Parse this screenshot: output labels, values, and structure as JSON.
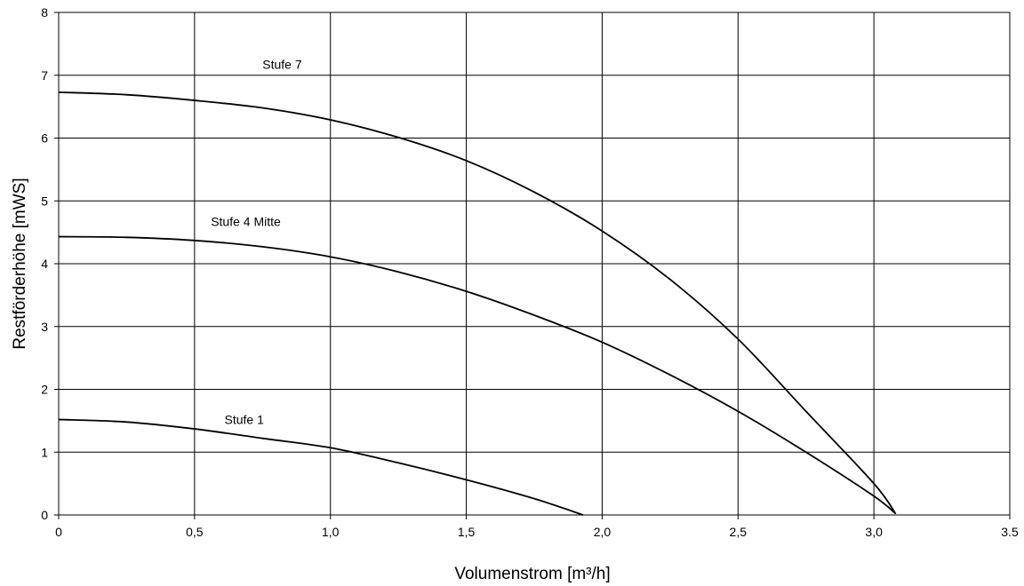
{
  "chart_data": {
    "type": "line",
    "title": "",
    "xlabel": "Volumenstrom [m³/h]",
    "ylabel": "Restförderhöhe [mWS]",
    "xlim": [
      0,
      3.5
    ],
    "ylim": [
      0,
      8
    ],
    "grid": true,
    "x_ticks": [
      {
        "value": 0,
        "label": "0"
      },
      {
        "value": 0.5,
        "label": "0,5"
      },
      {
        "value": 1.0,
        "label": "1,0"
      },
      {
        "value": 1.5,
        "label": "1,5"
      },
      {
        "value": 2.0,
        "label": "2,0"
      },
      {
        "value": 2.5,
        "label": "2,5"
      },
      {
        "value": 3.0,
        "label": "3,0"
      },
      {
        "value": 3.5,
        "label": "3.5"
      }
    ],
    "y_ticks": [
      {
        "value": 0,
        "label": "0"
      },
      {
        "value": 1,
        "label": "1"
      },
      {
        "value": 2,
        "label": "2"
      },
      {
        "value": 3,
        "label": "3"
      },
      {
        "value": 4,
        "label": "4"
      },
      {
        "value": 5,
        "label": "5"
      },
      {
        "value": 6,
        "label": "6"
      },
      {
        "value": 7,
        "label": "7"
      },
      {
        "value": 8,
        "label": "8"
      }
    ],
    "series": [
      {
        "name": "Stufe 7",
        "label_at": [
          0.75,
          7.1
        ],
        "x": [
          0,
          0.25,
          0.5,
          0.75,
          1.0,
          1.25,
          1.5,
          1.75,
          2.0,
          2.25,
          2.5,
          2.75,
          3.0,
          3.08
        ],
        "y": [
          6.73,
          6.69,
          6.6,
          6.48,
          6.29,
          6.01,
          5.64,
          5.14,
          4.52,
          3.75,
          2.8,
          1.65,
          0.5,
          0.02
        ]
      },
      {
        "name": "Stufe 4 Mitte",
        "label_at": [
          0.56,
          4.6
        ],
        "x": [
          0,
          0.25,
          0.5,
          0.75,
          1.0,
          1.25,
          1.5,
          1.75,
          2.0,
          2.25,
          2.5,
          2.75,
          3.0,
          3.08
        ],
        "y": [
          4.43,
          4.42,
          4.37,
          4.27,
          4.11,
          3.87,
          3.56,
          3.18,
          2.75,
          2.23,
          1.65,
          1.0,
          0.3,
          0.02
        ]
      },
      {
        "name": "Stufe 1",
        "label_at": [
          0.61,
          1.45
        ],
        "x": [
          0,
          0.25,
          0.5,
          0.75,
          1.0,
          1.25,
          1.5,
          1.75,
          1.93
        ],
        "y": [
          1.52,
          1.48,
          1.37,
          1.22,
          1.07,
          0.83,
          0.56,
          0.26,
          0.0
        ]
      }
    ]
  }
}
